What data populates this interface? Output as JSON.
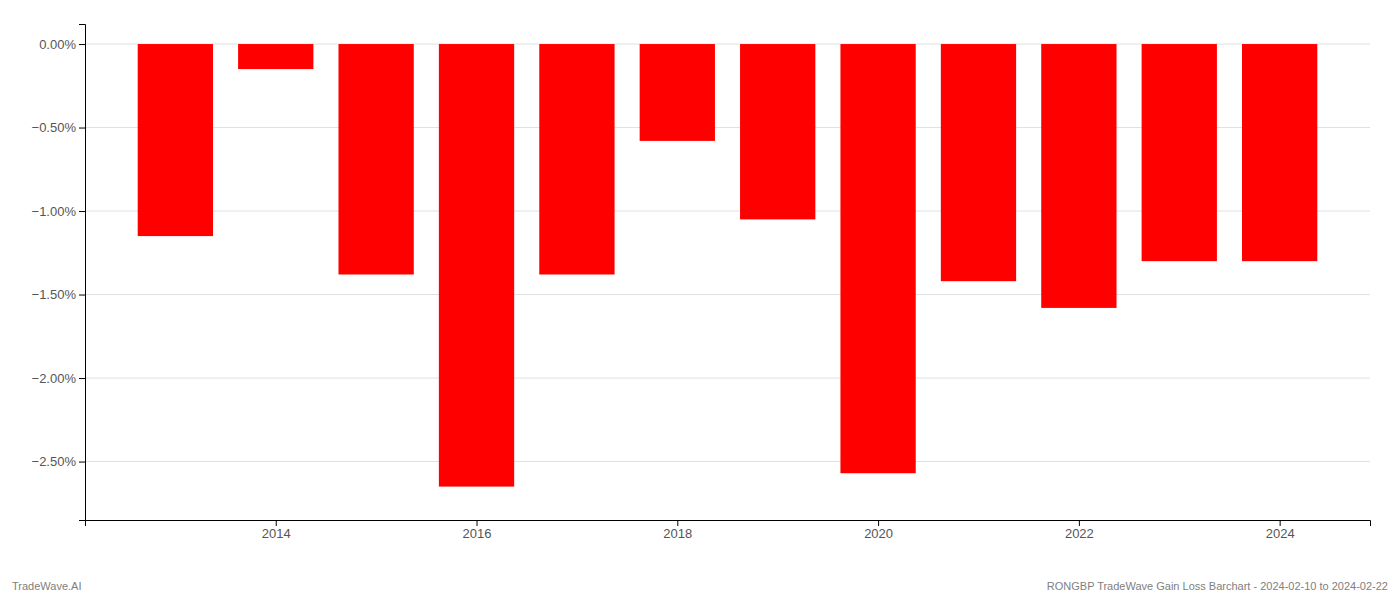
{
  "chart_data": {
    "type": "bar",
    "x": [
      2013,
      2014,
      2015,
      2016,
      2017,
      2018,
      2019,
      2020,
      2021,
      2022,
      2023,
      2024
    ],
    "values": [
      -1.15,
      -0.15,
      -1.38,
      -2.65,
      -1.38,
      -0.58,
      -1.05,
      -2.57,
      -1.42,
      -1.58,
      -1.3,
      -1.3
    ],
    "color": "#ff0000",
    "xlim": [
      2012.1,
      2024.9
    ],
    "xticks": [
      2014,
      2016,
      2018,
      2020,
      2022,
      2024
    ],
    "ylim": [
      -2.85,
      0.12
    ],
    "yticks": [
      {
        "value": 0.0,
        "label": "0.00%"
      },
      {
        "value": -0.5,
        "label": "−0.50%"
      },
      {
        "value": -1.0,
        "label": "−1.00%"
      },
      {
        "value": -1.5,
        "label": "−1.50%"
      },
      {
        "value": -2.0,
        "label": "−2.00%"
      },
      {
        "value": -2.5,
        "label": "−2.50%"
      }
    ],
    "grid": true,
    "annotations": [
      "TradeWave.AI",
      "RONGBP TradeWave Gain Loss Barchart - 2024-02-10 to 2024-02-22"
    ]
  }
}
